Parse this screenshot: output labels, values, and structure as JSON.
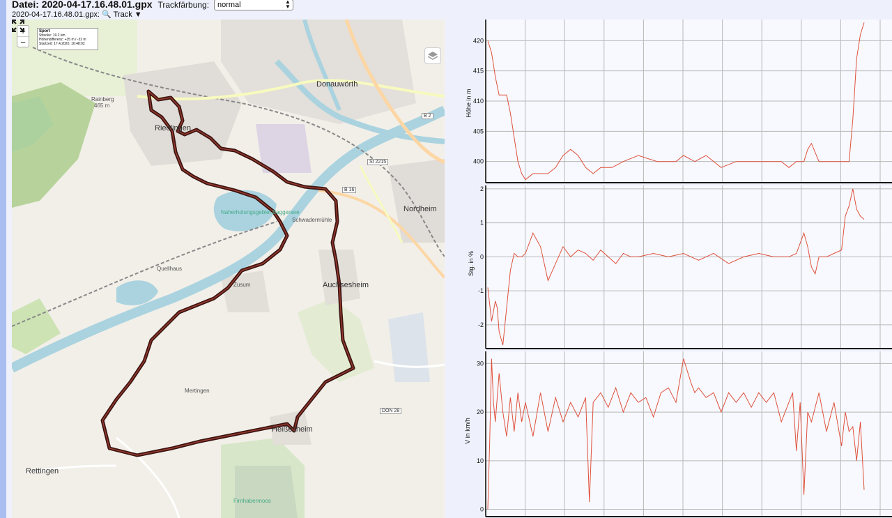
{
  "header": {
    "file_label": "Datei: 2020-04-17.16.48.01.gpx",
    "track_color_label": "Trackfärbung:",
    "track_color_value": "normal",
    "subtitle_file": "2020-04-17.16.48.01.gpx:",
    "track_link": "Track"
  },
  "map": {
    "zoom_in": "+",
    "zoom_out": "−",
    "info": {
      "title": "Sport",
      "distance": "Strecke: 19.2 km",
      "elevation": "Höhendifferenz: +35 m / -32 m",
      "start": "Startzeit: 17.4.2020, 16:48:02"
    },
    "labels": {
      "donauwoerth": "Donauwörth",
      "riedlingen": "Riedlingen",
      "nordheim": "Nordheim",
      "auchsesheim": "Auchsesheim",
      "heissesheim": "Heißesheim",
      "rettingen": "Rettingen",
      "quellhaus": "Quellhaus",
      "zusum": "Zusum",
      "schwadermuehle": "Schwadermühle",
      "baggersee": "Naherholungsgebiet Baggersee",
      "rainberg": "Rainberg",
      "rainberg_height": "465 m",
      "mertingen": "Mertingen",
      "firnhabermoos": "Firnhabermoos",
      "b16": "B 16",
      "b2": "B 2",
      "st2215": "St 2215",
      "don28": "DON 28"
    }
  },
  "chart_data": [
    {
      "type": "line",
      "ylabel": "Höhe in m",
      "ylim": [
        396.5,
        423.5
      ],
      "yticks": [
        400,
        405,
        410,
        415,
        420
      ],
      "grid": true,
      "x": [
        0,
        1,
        2,
        3,
        4,
        5,
        6,
        7,
        8,
        9,
        10,
        12,
        14,
        16,
        18,
        20,
        22,
        24,
        26,
        28,
        30,
        33,
        36,
        40,
        45,
        50,
        52,
        55,
        58,
        62,
        66,
        70,
        74,
        78,
        80,
        82,
        84,
        85,
        86,
        88,
        90,
        91,
        92,
        93,
        94,
        96,
        97,
        98,
        99,
        100
      ],
      "values": [
        420,
        418,
        414,
        411,
        411,
        411,
        408,
        404,
        400,
        398,
        397,
        398,
        398,
        398,
        399,
        401,
        402,
        401,
        399,
        398,
        399,
        399,
        400,
        401,
        400,
        400,
        401,
        400,
        401,
        399,
        400,
        400,
        400,
        400,
        399,
        400,
        400,
        402,
        403,
        400,
        400,
        400,
        400,
        400,
        400,
        400,
        407,
        417,
        421,
        423
      ]
    },
    {
      "type": "line",
      "ylabel": "Stg. in %",
      "ylim": [
        -2.7,
        2.1
      ],
      "yticks": [
        -2,
        -1,
        0,
        1,
        2
      ],
      "grid": true,
      "x": [
        0,
        1,
        2,
        2.5,
        3,
        4,
        5,
        6,
        7,
        8,
        9,
        10,
        12,
        14,
        16,
        18,
        20,
        22,
        24,
        26,
        28,
        30,
        32,
        34,
        36,
        38,
        40,
        44,
        48,
        52,
        56,
        60,
        64,
        68,
        72,
        76,
        80,
        82,
        84,
        85,
        86,
        87,
        88,
        90,
        92,
        94,
        95,
        96,
        97,
        98,
        99,
        100
      ],
      "values": [
        -0.9,
        -1.9,
        -1.3,
        -1.5,
        -2.2,
        -2.6,
        -1.5,
        -0.4,
        0.1,
        0.0,
        0.0,
        0.1,
        0.7,
        0.3,
        -0.7,
        -0.2,
        0.3,
        0.0,
        0.2,
        0.1,
        -0.1,
        0.2,
        0.0,
        -0.2,
        0.1,
        0.0,
        0.0,
        0.1,
        0.0,
        0.1,
        -0.1,
        0.1,
        -0.2,
        0.0,
        0.1,
        0.0,
        0.0,
        0.1,
        0.7,
        0.3,
        -0.3,
        -0.5,
        0.0,
        0.0,
        0.1,
        0.2,
        1.2,
        1.5,
        2.0,
        1.4,
        1.2,
        1.1
      ]
    },
    {
      "type": "line",
      "ylabel": "V in km/h",
      "ylim": [
        -1.5,
        32.5
      ],
      "yticks": [
        0,
        10,
        20,
        30
      ],
      "grid": true,
      "x": [
        0,
        0.5,
        1,
        1.5,
        2,
        3,
        4,
        5,
        6,
        7,
        8,
        9,
        10,
        12,
        14,
        16,
        18,
        20,
        22,
        24,
        26,
        27,
        28,
        30,
        32,
        34,
        36,
        38,
        40,
        42,
        44,
        46,
        48,
        50,
        52,
        54,
        55,
        56,
        58,
        60,
        62,
        64,
        66,
        68,
        70,
        72,
        74,
        76,
        78,
        80,
        81,
        82,
        83,
        84,
        85,
        86,
        88,
        90,
        92,
        94,
        95,
        96,
        97,
        98,
        99,
        100
      ],
      "values": [
        0,
        14,
        31,
        22,
        18,
        28,
        20,
        15,
        23,
        16,
        24,
        18,
        22,
        15,
        24,
        16,
        23,
        18,
        22,
        19,
        23,
        1.5,
        22,
        24,
        21,
        25,
        20,
        24,
        22,
        23,
        19,
        24,
        25,
        22,
        31,
        26,
        24,
        25,
        23,
        24,
        20,
        24,
        22,
        24,
        21,
        24,
        22,
        24,
        18,
        22,
        24,
        12,
        22,
        3,
        20,
        18,
        24,
        16,
        22,
        13,
        20,
        16,
        17,
        10,
        18,
        4
      ]
    }
  ],
  "charts": {
    "elevation": {
      "ylabel": "Höhe in m"
    },
    "slope": {
      "ylabel": "Stg. in %"
    },
    "speed": {
      "ylabel": "V in km/h"
    }
  }
}
